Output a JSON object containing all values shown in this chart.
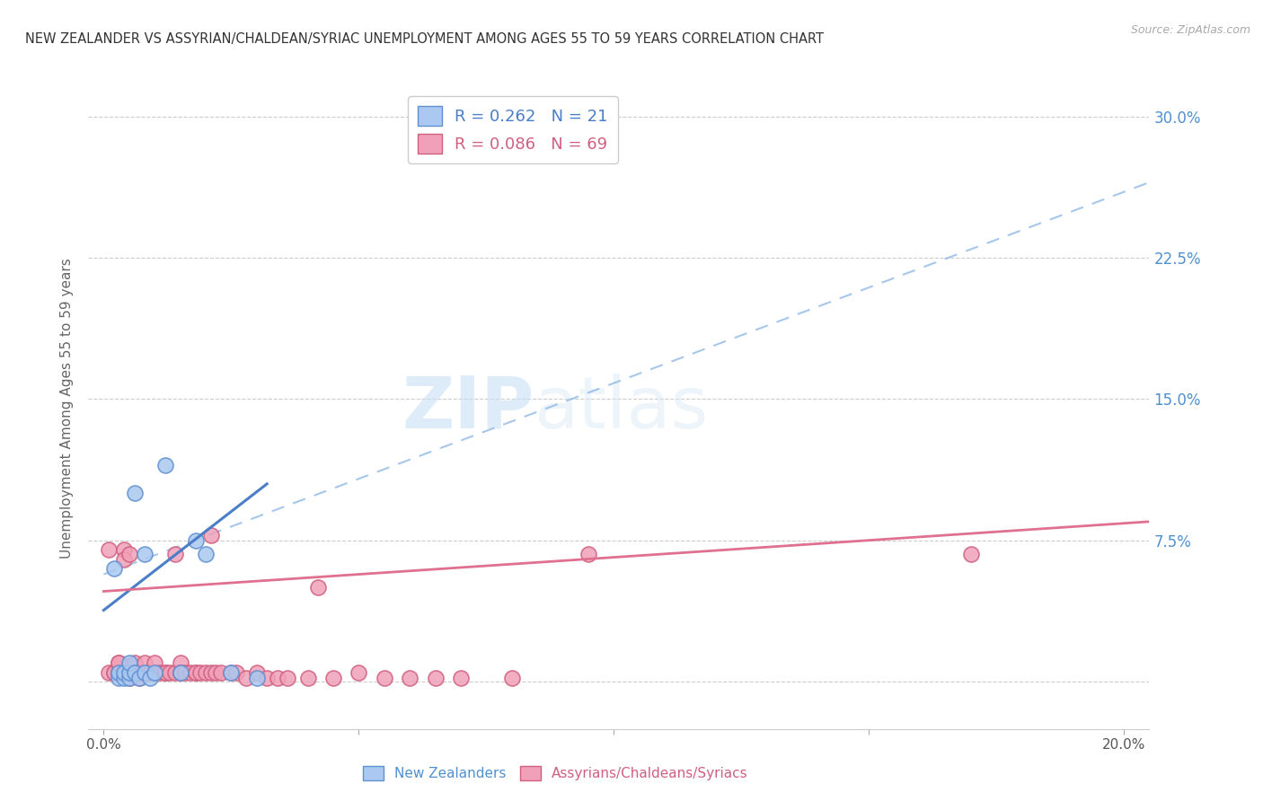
{
  "title": "NEW ZEALANDER VS ASSYRIAN/CHALDEAN/SYRIAC UNEMPLOYMENT AMONG AGES 55 TO 59 YEARS CORRELATION CHART",
  "source": "Source: ZipAtlas.com",
  "ylabel": "Unemployment Among Ages 55 to 59 years",
  "yticks_right": [
    0.0,
    0.075,
    0.15,
    0.225,
    0.3
  ],
  "ytick_right_labels": [
    "",
    "7.5%",
    "15.0%",
    "22.5%",
    "30.0%"
  ],
  "xlim": [
    -0.003,
    0.205
  ],
  "ylim": [
    -0.025,
    0.315
  ],
  "nz_color": "#aac8f0",
  "nz_edge_color": "#6090d0",
  "ass_color": "#f0a0b8",
  "ass_edge_color": "#d06080",
  "nz_R": 0.262,
  "nz_N": 21,
  "ass_R": 0.086,
  "ass_N": 69,
  "watermark_zip": "ZIP",
  "watermark_atlas": "atlas",
  "legend_label_nz": "New Zealanders",
  "legend_label_ass": "Assyrians/Chaldeans/Syriacs",
  "nz_line_color": "#4a7ec8",
  "ass_line_color": "#e07090",
  "dash_line_color": "#90b8e8",
  "nz_points_x": [
    0.002,
    0.003,
    0.003,
    0.004,
    0.004,
    0.005,
    0.005,
    0.005,
    0.006,
    0.006,
    0.007,
    0.008,
    0.008,
    0.009,
    0.01,
    0.012,
    0.015,
    0.018,
    0.02,
    0.025,
    0.03
  ],
  "nz_points_y": [
    0.06,
    0.002,
    0.005,
    0.002,
    0.005,
    0.002,
    0.005,
    0.01,
    0.005,
    0.1,
    0.002,
    0.005,
    0.068,
    0.002,
    0.005,
    0.115,
    0.005,
    0.075,
    0.068,
    0.005,
    0.002
  ],
  "ass_points_x": [
    0.001,
    0.001,
    0.002,
    0.002,
    0.003,
    0.003,
    0.003,
    0.003,
    0.004,
    0.004,
    0.004,
    0.004,
    0.005,
    0.005,
    0.005,
    0.005,
    0.005,
    0.005,
    0.006,
    0.006,
    0.006,
    0.007,
    0.007,
    0.007,
    0.008,
    0.008,
    0.008,
    0.009,
    0.009,
    0.01,
    0.01,
    0.01,
    0.011,
    0.012,
    0.012,
    0.013,
    0.014,
    0.014,
    0.015,
    0.015,
    0.015,
    0.016,
    0.017,
    0.018,
    0.018,
    0.019,
    0.02,
    0.021,
    0.021,
    0.022,
    0.023,
    0.025,
    0.026,
    0.028,
    0.03,
    0.032,
    0.034,
    0.036,
    0.04,
    0.042,
    0.045,
    0.05,
    0.055,
    0.06,
    0.065,
    0.07,
    0.08,
    0.095,
    0.17
  ],
  "ass_points_y": [
    0.005,
    0.07,
    0.005,
    0.005,
    0.005,
    0.005,
    0.01,
    0.01,
    0.005,
    0.005,
    0.07,
    0.065,
    0.002,
    0.005,
    0.005,
    0.005,
    0.008,
    0.068,
    0.005,
    0.005,
    0.01,
    0.002,
    0.005,
    0.005,
    0.005,
    0.005,
    0.01,
    0.005,
    0.005,
    0.005,
    0.005,
    0.01,
    0.005,
    0.005,
    0.005,
    0.005,
    0.005,
    0.068,
    0.005,
    0.01,
    0.005,
    0.005,
    0.005,
    0.005,
    0.005,
    0.005,
    0.005,
    0.078,
    0.005,
    0.005,
    0.005,
    0.005,
    0.005,
    0.002,
    0.005,
    0.002,
    0.002,
    0.002,
    0.002,
    0.05,
    0.002,
    0.005,
    0.002,
    0.002,
    0.002,
    0.002,
    0.002,
    0.068,
    0.068
  ],
  "nz_line_x": [
    0.0,
    0.032
  ],
  "nz_line_y": [
    0.038,
    0.105
  ],
  "ass_line_x": [
    0.0,
    0.205
  ],
  "ass_line_y": [
    0.048,
    0.085
  ],
  "dash_line_x": [
    0.0,
    0.205
  ],
  "dash_line_y": [
    0.057,
    0.265
  ]
}
